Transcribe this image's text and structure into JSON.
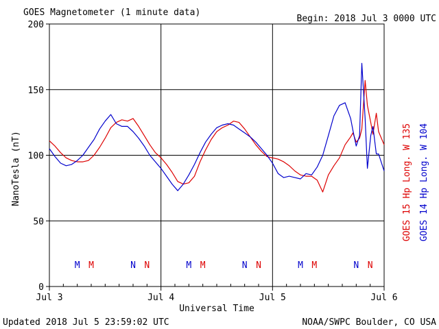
{
  "header": {
    "title": "GOES Magnetometer (1 minute data)",
    "begin": "Begin:  2018 Jul 3 0000 UTC"
  },
  "footer": {
    "updated": "Updated 2018 Jul  5 23:59:02 UTC",
    "source": "NOAA/SWPC Boulder, CO USA"
  },
  "colors": {
    "goes15": "#dd0000",
    "goes14": "#0000cc",
    "grid": "#000000"
  },
  "chart_data": {
    "type": "line",
    "title": "GOES Magnetometer (1 minute data)",
    "xlabel": "Universal Time",
    "ylabel": "NanoTesla (nT)",
    "ylim": [
      0,
      200
    ],
    "xlim_days": [
      0,
      3
    ],
    "y_ticks": [
      0,
      50,
      100,
      150,
      200
    ],
    "x_ticks": [
      {
        "day": 0,
        "label": "Jul 3"
      },
      {
        "day": 1,
        "label": "Jul 4"
      },
      {
        "day": 2,
        "label": "Jul 5"
      },
      {
        "day": 3,
        "label": "Jul 6"
      }
    ],
    "grid": true,
    "legend_position": "right, vertical",
    "series": [
      {
        "name": "GOES 15 Hp  Long. W 135",
        "color": "#dd0000",
        "x": [
          0,
          0.05,
          0.1,
          0.15,
          0.2,
          0.25,
          0.3,
          0.35,
          0.4,
          0.45,
          0.5,
          0.55,
          0.6,
          0.65,
          0.7,
          0.75,
          0.8,
          0.85,
          0.9,
          0.95,
          1.0,
          1.05,
          1.1,
          1.15,
          1.2,
          1.25,
          1.3,
          1.35,
          1.4,
          1.45,
          1.5,
          1.55,
          1.6,
          1.65,
          1.7,
          1.75,
          1.8,
          1.85,
          1.9,
          1.95,
          2.0,
          2.05,
          2.1,
          2.15,
          2.2,
          2.25,
          2.3,
          2.35,
          2.4,
          2.45,
          2.5,
          2.55,
          2.6,
          2.65,
          2.7,
          2.72,
          2.75,
          2.78,
          2.8,
          2.83,
          2.85,
          2.88,
          2.9,
          2.93,
          2.95,
          3.0
        ],
        "y": [
          111,
          107,
          102,
          98,
          96,
          95,
          95,
          96,
          100,
          106,
          113,
          121,
          125,
          127,
          126,
          128,
          122,
          115,
          108,
          102,
          98,
          93,
          87,
          80,
          78,
          79,
          84,
          95,
          104,
          112,
          118,
          121,
          123,
          126,
          125,
          120,
          114,
          108,
          103,
          99,
          98,
          97,
          95,
          92,
          88,
          85,
          84,
          84,
          81,
          72,
          85,
          92,
          98,
          108,
          114,
          117,
          110,
          113,
          120,
          157,
          138,
          125,
          116,
          132,
          118,
          108
        ]
      },
      {
        "name": "GOES 14 Hp  Long. W 104",
        "color": "#0000cc",
        "x": [
          0,
          0.05,
          0.1,
          0.15,
          0.2,
          0.25,
          0.3,
          0.35,
          0.4,
          0.45,
          0.5,
          0.55,
          0.6,
          0.65,
          0.7,
          0.75,
          0.8,
          0.85,
          0.9,
          0.95,
          1.0,
          1.05,
          1.1,
          1.15,
          1.2,
          1.25,
          1.3,
          1.35,
          1.4,
          1.45,
          1.5,
          1.55,
          1.6,
          1.65,
          1.7,
          1.75,
          1.8,
          1.85,
          1.9,
          1.95,
          2.0,
          2.05,
          2.1,
          2.15,
          2.2,
          2.25,
          2.3,
          2.35,
          2.4,
          2.45,
          2.5,
          2.55,
          2.6,
          2.65,
          2.7,
          2.72,
          2.75,
          2.78,
          2.8,
          2.83,
          2.85,
          2.88,
          2.9,
          2.93,
          2.95,
          3.0
        ],
        "y": [
          105,
          99,
          94,
          92,
          93,
          96,
          100,
          106,
          112,
          120,
          126,
          131,
          124,
          122,
          122,
          118,
          113,
          107,
          100,
          95,
          90,
          84,
          78,
          73,
          78,
          85,
          93,
          102,
          110,
          116,
          121,
          123,
          124,
          123,
          120,
          117,
          114,
          110,
          105,
          100,
          94,
          86,
          83,
          84,
          83,
          82,
          86,
          85,
          91,
          100,
          115,
          130,
          138,
          140,
          128,
          119,
          107,
          115,
          170,
          128,
          90,
          115,
          122,
          101,
          101,
          88
        ]
      }
    ],
    "annotations": [
      {
        "text": "M",
        "day": 0.25,
        "series": "goes14"
      },
      {
        "text": "M",
        "day": 0.375,
        "series": "goes15"
      },
      {
        "text": "N",
        "day": 0.75,
        "series": "goes14"
      },
      {
        "text": "N",
        "day": 0.875,
        "series": "goes15"
      },
      {
        "text": "M",
        "day": 1.25,
        "series": "goes14"
      },
      {
        "text": "M",
        "day": 1.375,
        "series": "goes15"
      },
      {
        "text": "N",
        "day": 1.75,
        "series": "goes14"
      },
      {
        "text": "N",
        "day": 1.875,
        "series": "goes15"
      },
      {
        "text": "M",
        "day": 2.25,
        "series": "goes14"
      },
      {
        "text": "M",
        "day": 2.375,
        "series": "goes15"
      },
      {
        "text": "N",
        "day": 2.75,
        "series": "goes14"
      },
      {
        "text": "N",
        "day": 2.875,
        "series": "goes15"
      }
    ]
  }
}
